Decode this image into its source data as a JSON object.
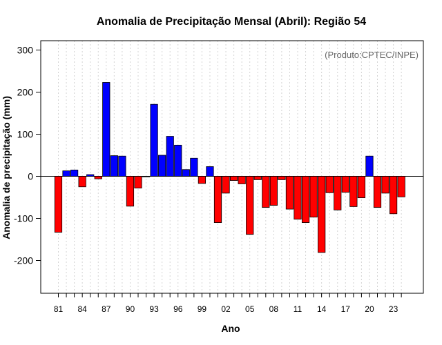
{
  "chart_data": {
    "type": "bar",
    "title": "Anomalia de Precipitação Mensal (Abril): Região 54",
    "xlabel": "Ano",
    "ylabel": "Anomalia de precipitação (mm)",
    "credit": "(Produto:CPTEC/INPE)",
    "ylim": [
      -280,
      325
    ],
    "yticks": [
      -200,
      -100,
      0,
      100,
      200,
      300
    ],
    "ytick_labels": [
      "-200",
      "-100",
      "0",
      "100",
      "200",
      "300"
    ],
    "xtick_years": [
      1981,
      1984,
      1987,
      1990,
      1993,
      1996,
      1999,
      2002,
      2005,
      2008,
      2011,
      2014,
      2017,
      2020,
      2023
    ],
    "xtick_labels": [
      "81",
      "84",
      "87",
      "90",
      "93",
      "96",
      "99",
      "02",
      "05",
      "08",
      "11",
      "14",
      "17",
      "20",
      "23"
    ],
    "grid": true,
    "colors": {
      "positive": "#0000ff",
      "negative": "#ff0000",
      "outline": "#000000",
      "grid": "#d3d3d3"
    },
    "categories": [
      1981,
      1982,
      1983,
      1984,
      1985,
      1986,
      1987,
      1988,
      1989,
      1990,
      1991,
      1992,
      1993,
      1994,
      1995,
      1996,
      1997,
      1998,
      1999,
      2000,
      2001,
      2002,
      2003,
      2004,
      2005,
      2006,
      2007,
      2008,
      2009,
      2010,
      2011,
      2012,
      2013,
      2014,
      2015,
      2016,
      2017,
      2018,
      2019,
      2020,
      2021,
      2022,
      2023,
      2024
    ],
    "values": [
      -133,
      13,
      15,
      -25,
      4,
      -6,
      223,
      49,
      48,
      -71,
      -28,
      -1,
      171,
      50,
      95,
      74,
      16,
      43,
      -17,
      23,
      -110,
      -40,
      -10,
      -18,
      -138,
      -8,
      -74,
      -69,
      -8,
      -78,
      -102,
      -110,
      -97,
      -181,
      -39,
      -80,
      -38,
      -72,
      -51,
      48,
      -74,
      -40,
      -89,
      -49
    ]
  }
}
